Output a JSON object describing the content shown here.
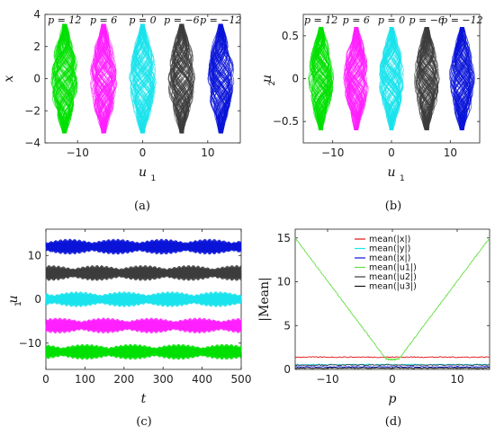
{
  "colors": {
    "green": "#00e000",
    "magenta": "#ff1fff",
    "cyan": "#19e3ec",
    "gray": "#3c3c3c",
    "blue": "#0a14d8",
    "red": "#e01010",
    "lightgreen": "#66dd44",
    "black": "#111111"
  },
  "chart_data": [
    {
      "type": "scatter",
      "panel": "a",
      "caption": "(a)",
      "xlabel": "u",
      "xlabel_sub": "1",
      "ylabel": "x",
      "xlim": [
        -15,
        15
      ],
      "ylim": [
        -4,
        4
      ],
      "xticks": [
        -10,
        0,
        10
      ],
      "yticks": [
        4,
        2,
        0,
        -2,
        -4
      ],
      "series": [
        {
          "label": "p = 12",
          "center": -12,
          "color": "green",
          "halfwidth": 2.1,
          "yrange": [
            -3.4,
            3.4
          ]
        },
        {
          "label": "p = 6",
          "center": -6,
          "color": "magenta",
          "halfwidth": 2.1,
          "yrange": [
            -3.4,
            3.4
          ]
        },
        {
          "label": "p = 0",
          "center": 0,
          "color": "cyan",
          "halfwidth": 2.1,
          "yrange": [
            -3.4,
            3.4
          ]
        },
        {
          "label": "p = −6",
          "center": 6,
          "color": "gray",
          "halfwidth": 2.1,
          "yrange": [
            -3.4,
            3.4
          ]
        },
        {
          "label": "p = −12",
          "center": 12,
          "color": "blue",
          "halfwidth": 2.1,
          "yrange": [
            -3.4,
            3.4
          ]
        }
      ]
    },
    {
      "type": "scatter",
      "panel": "b",
      "caption": "(b)",
      "xlabel": "u",
      "xlabel_sub": "1",
      "ylabel": "u",
      "ylabel_sub": "2",
      "xlim": [
        -15,
        15
      ],
      "ylim": [
        -0.75,
        0.75
      ],
      "xticks": [
        -10,
        0,
        10
      ],
      "yticks": [
        0.5,
        0,
        -0.5
      ],
      "series": [
        {
          "label": "p = 12",
          "center": -12,
          "color": "green",
          "halfwidth": 2.2,
          "yrange": [
            -0.6,
            0.6
          ]
        },
        {
          "label": "p = 6",
          "center": -6,
          "color": "magenta",
          "halfwidth": 2.2,
          "yrange": [
            -0.6,
            0.6
          ]
        },
        {
          "label": "p = 0",
          "center": 0,
          "color": "cyan",
          "halfwidth": 2.2,
          "yrange": [
            -0.6,
            0.6
          ]
        },
        {
          "label": "p = −6",
          "center": 6,
          "color": "gray",
          "halfwidth": 2.2,
          "yrange": [
            -0.6,
            0.6
          ]
        },
        {
          "label": "p = −12",
          "center": 12,
          "color": "blue",
          "halfwidth": 2.2,
          "yrange": [
            -0.6,
            0.6
          ]
        }
      ]
    },
    {
      "type": "line",
      "panel": "c",
      "caption": "(c)",
      "xlabel": "t",
      "ylabel": "u",
      "ylabel_sub": "1",
      "xlim": [
        0,
        500
      ],
      "ylim": [
        -16,
        16
      ],
      "xticks": [
        0,
        100,
        200,
        300,
        400,
        500
      ],
      "yticks": [
        10,
        0,
        -10
      ],
      "series": [
        {
          "center": 12,
          "amp": 1.8,
          "color": "blue"
        },
        {
          "center": 6,
          "amp": 1.8,
          "color": "gray"
        },
        {
          "center": 0,
          "amp": 1.8,
          "color": "cyan"
        },
        {
          "center": -6,
          "amp": 1.8,
          "color": "magenta"
        },
        {
          "center": -12,
          "amp": 1.8,
          "color": "green"
        }
      ]
    },
    {
      "type": "line",
      "panel": "d",
      "caption": "(d)",
      "xlabel": "p",
      "ylabel": "|Mean|",
      "xlim": [
        -15,
        15
      ],
      "ylim": [
        0,
        16
      ],
      "xticks": [
        -10,
        0,
        10
      ],
      "yticks": [
        15,
        10,
        5,
        0
      ],
      "legend_position": "top-center",
      "series": [
        {
          "name": "mean(|x|)",
          "color": "red",
          "x": [
            -15,
            15
          ],
          "y": [
            1.4,
            1.4
          ]
        },
        {
          "name": "mean(|y|)",
          "color": "cyan",
          "x": [
            -15,
            15
          ],
          "y": [
            0.55,
            0.55
          ]
        },
        {
          "name": "mean(|x|)",
          "color": "blue",
          "x": [
            -15,
            15
          ],
          "y": [
            0.3,
            0.3
          ]
        },
        {
          "name": "mean(|u1|)",
          "color": "lightgreen",
          "x": [
            -15,
            -1,
            0,
            1,
            15
          ],
          "y": [
            15,
            1.2,
            1.1,
            1.2,
            15
          ]
        },
        {
          "name": "mean(|u2|)",
          "color": "gray",
          "x": [
            -15,
            15
          ],
          "y": [
            0.5,
            0.5
          ]
        },
        {
          "name": "mean(|u3|)",
          "color": "black",
          "x": [
            -15,
            15
          ],
          "y": [
            0.15,
            0.15
          ]
        }
      ]
    }
  ]
}
